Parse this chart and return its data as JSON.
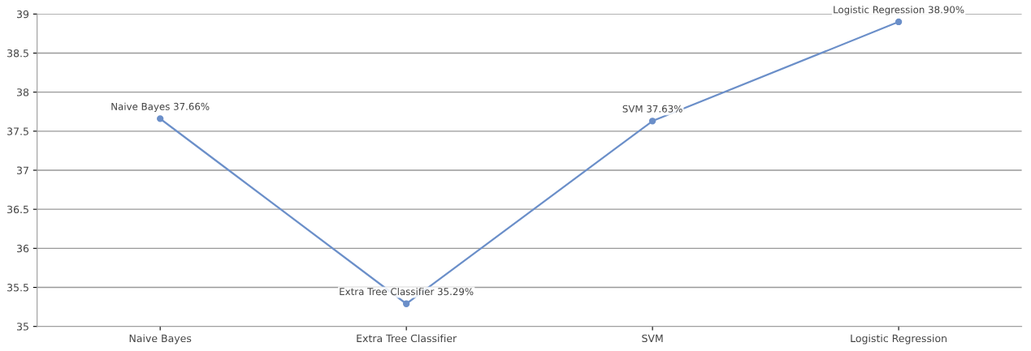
{
  "chart_data": {
    "type": "line",
    "categories": [
      "Naive Bayes",
      "Extra Tree Classifier",
      "SVM",
      "Logistic Regression"
    ],
    "series": [
      {
        "color": "#6b8fc9",
        "values": [
          37.66,
          35.29,
          37.63,
          38.9
        ],
        "value_labels": [
          "Naive Bayes 37.66%",
          "Extra Tree Classifier 35.29%",
          "SVM 37.63%",
          "Logistic Regression 38.90%"
        ]
      }
    ],
    "ylim": [
      35,
      39
    ],
    "yticks": [
      35,
      35.5,
      36,
      36.5,
      37,
      37.5,
      38,
      38.5,
      39
    ],
    "grid": "y",
    "marker": "circle",
    "line_style": "solid",
    "legend": false
  }
}
